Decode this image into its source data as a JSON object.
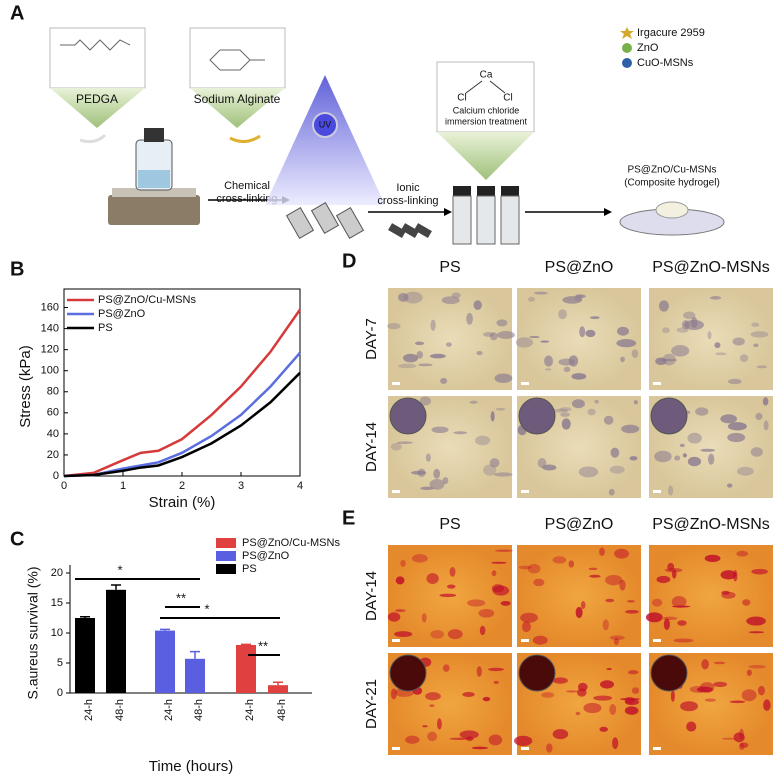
{
  "panel_a": {
    "label": "A",
    "boxes": [
      "PEDGA",
      "Sodium Alginate"
    ],
    "step1": [
      "Chemical",
      "cross-linking"
    ],
    "uv": "UV",
    "step2": [
      "Ionic",
      "cross-linking"
    ],
    "chem": [
      "Ca",
      "Cl",
      "Cl"
    ],
    "chem_note": [
      "Calcium chloride",
      "immersion treatment"
    ],
    "legend": [
      {
        "name": "Irgacure 2959",
        "color": "#d4a82a"
      },
      {
        "name": "ZnO",
        "color": "#7ab04a"
      },
      {
        "name": "CuO-MSNs",
        "color": "#2f5fa8"
      }
    ],
    "product": [
      "PS@ZnO/Cu-MSNs",
      "(Composite hydrogel)"
    ]
  },
  "chart_data": [
    {
      "type": "line",
      "panel_label": "B",
      "xlabel": "Strain (%)",
      "ylabel": "Stress (kPa)",
      "x": [
        0,
        0.5,
        1,
        1.3,
        1.6,
        2,
        2.5,
        3,
        3.5,
        4
      ],
      "series": [
        {
          "name": "PS@ZnO/Cu-MSNs",
          "color": "#d63a3a",
          "values": [
            0,
            3,
            15,
            22,
            24,
            35,
            58,
            85,
            118,
            158
          ]
        },
        {
          "name": "PS@ZnO",
          "color": "#5a6ee0",
          "values": [
            0,
            1,
            7,
            10,
            13,
            22,
            38,
            58,
            85,
            117
          ]
        },
        {
          "name": "PS",
          "color": "#000000",
          "values": [
            0,
            1,
            5,
            8,
            10,
            18,
            31,
            48,
            70,
            98
          ]
        }
      ],
      "xlim": [
        0,
        4
      ],
      "ylim": [
        0,
        170
      ],
      "xticks": [
        0,
        1,
        2,
        3,
        4
      ],
      "yticks": [
        0,
        20,
        40,
        60,
        80,
        100,
        120,
        140,
        160
      ],
      "legend": "upper left"
    },
    {
      "type": "bar",
      "panel_label": "C",
      "xlabel": "Time (hours)",
      "ylabel": "S.aureus survival (%)",
      "categories": [
        "24-h",
        "48-h"
      ],
      "series": [
        {
          "name": "PS@ZnO/Cu-MSNs",
          "color": "#e04040",
          "values": [
            8.0,
            1.3
          ],
          "errors": [
            0.1,
            0.5
          ]
        },
        {
          "name": "PS@ZnO",
          "color": "#5a5ee0",
          "values": [
            10.4,
            5.7
          ],
          "errors": [
            0.2,
            1.2
          ]
        },
        {
          "name": "PS",
          "color": "#000000",
          "values": [
            12.5,
            17.2
          ],
          "errors": [
            0.2,
            0.8
          ]
        }
      ],
      "ylim": [
        0,
        20
      ],
      "yticks": [
        0,
        5,
        10,
        15,
        20
      ],
      "annotations": [
        "*",
        "**",
        "*",
        "**"
      ],
      "legend": "upper right"
    }
  ],
  "panel_d": {
    "label": "D",
    "columns": [
      "PS",
      "PS@ZnO",
      "PS@ZnO-MSNs"
    ],
    "rows": [
      "DAY-7",
      "DAY-14"
    ]
  },
  "panel_e": {
    "label": "E",
    "columns": [
      "PS",
      "PS@ZnO",
      "PS@ZnO-MSNs"
    ],
    "rows": [
      "DAY-14",
      "DAY-21"
    ]
  }
}
